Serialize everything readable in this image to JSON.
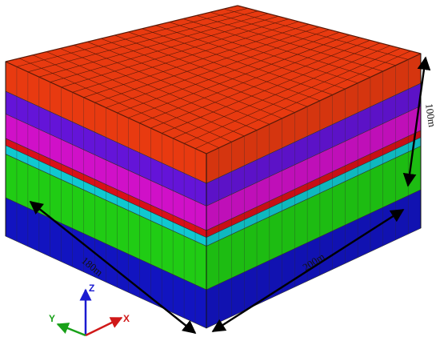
{
  "model": {
    "layers_top_to_bottom": [
      {
        "name": "orange",
        "color": "#e83a10"
      },
      {
        "name": "purple",
        "color": "#6414d8"
      },
      {
        "name": "magenta",
        "color": "#d010c8"
      },
      {
        "name": "red",
        "color": "#d81018"
      },
      {
        "name": "cyan",
        "color": "#10c8d0"
      },
      {
        "name": "green",
        "color": "#20cc14"
      },
      {
        "name": "blue",
        "color": "#1214c0"
      }
    ]
  },
  "dimensions": {
    "depth_label": "180m",
    "width_label": "200m",
    "height_label": "100m"
  },
  "axes": {
    "z_label": "Z",
    "y_label": "Y",
    "x_label": "X",
    "z_color": "#1a1ad0",
    "y_color": "#18a018",
    "x_color": "#d01818"
  }
}
